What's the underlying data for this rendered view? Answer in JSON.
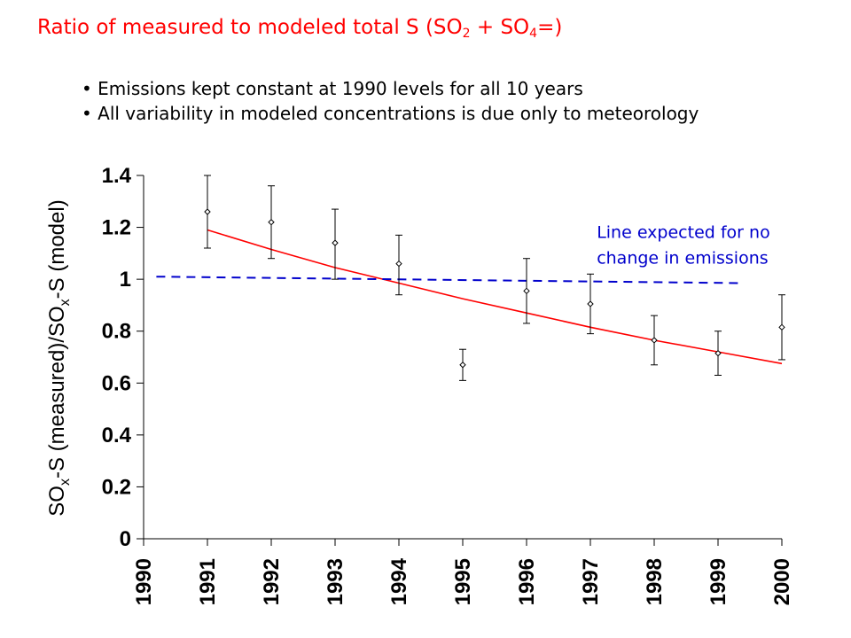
{
  "slide": {
    "title_prefix": "Ratio of measured to modeled total S (SO",
    "title_sub1": "2",
    "title_mid": " + SO",
    "title_sub2": "4",
    "title_suffix": "=)",
    "bullets": [
      "Emissions kept constant at 1990 levels for all 10 years",
      "All variability in modeled concentrations is due only to meteorology"
    ]
  },
  "chart_data": {
    "type": "scatter",
    "ylabel": {
      "part1": "SO",
      "sub1": "x",
      "part2": "-S (measured)/SO",
      "sub2": "x",
      "part3": "-S (model)"
    },
    "xlim": [
      1990,
      2000
    ],
    "ylim": [
      0,
      1.4
    ],
    "x_ticks": [
      1990,
      1991,
      1992,
      1993,
      1994,
      1995,
      1996,
      1997,
      1998,
      1999,
      2000
    ],
    "y_ticks": [
      0,
      0.2,
      0.4,
      0.6,
      0.8,
      1,
      1.2,
      1.4
    ],
    "y_tick_labels": [
      "0",
      "0.2",
      "0.4",
      "0.6",
      "0.8",
      "1",
      "1.2",
      "1.4"
    ],
    "grid": false,
    "legend": "none",
    "series": [
      {
        "type": "scatter-errorbar",
        "color": "#000000",
        "points": [
          {
            "x": 1991,
            "y": 1.26,
            "low": 1.12,
            "high": 1.4
          },
          {
            "x": 1992,
            "y": 1.22,
            "low": 1.08,
            "high": 1.36
          },
          {
            "x": 1993,
            "y": 1.14,
            "low": 1.0,
            "high": 1.27
          },
          {
            "x": 1994,
            "y": 1.06,
            "low": 0.94,
            "high": 1.17
          },
          {
            "x": 1995,
            "y": 0.67,
            "low": 0.61,
            "high": 0.73
          },
          {
            "x": 1996,
            "y": 0.955,
            "low": 0.83,
            "high": 1.08
          },
          {
            "x": 1997,
            "y": 0.905,
            "low": 0.79,
            "high": 1.02
          },
          {
            "x": 1998,
            "y": 0.765,
            "low": 0.67,
            "high": 0.86
          },
          {
            "x": 1999,
            "y": 0.715,
            "low": 0.63,
            "high": 0.8
          },
          {
            "x": 2000,
            "y": 0.815,
            "low": 0.69,
            "high": 0.94
          }
        ]
      },
      {
        "type": "trend-curve",
        "color": "#ff0000",
        "points": [
          [
            1991,
            1.19
          ],
          [
            1992,
            1.115
          ],
          [
            1993,
            1.045
          ],
          [
            1994,
            0.985
          ],
          [
            1995,
            0.925
          ],
          [
            1996,
            0.87
          ],
          [
            1997,
            0.815
          ],
          [
            1998,
            0.765
          ],
          [
            1999,
            0.72
          ],
          [
            2000,
            0.675
          ]
        ]
      },
      {
        "type": "dashed-line",
        "color": "#0000cc",
        "points": [
          [
            1990.2,
            1.01
          ],
          [
            1999.35,
            0.985
          ]
        ]
      }
    ],
    "annotation": {
      "lines": [
        "Line expected for no",
        "change in emissions"
      ],
      "x": 1997.1,
      "y": 1.16
    }
  }
}
